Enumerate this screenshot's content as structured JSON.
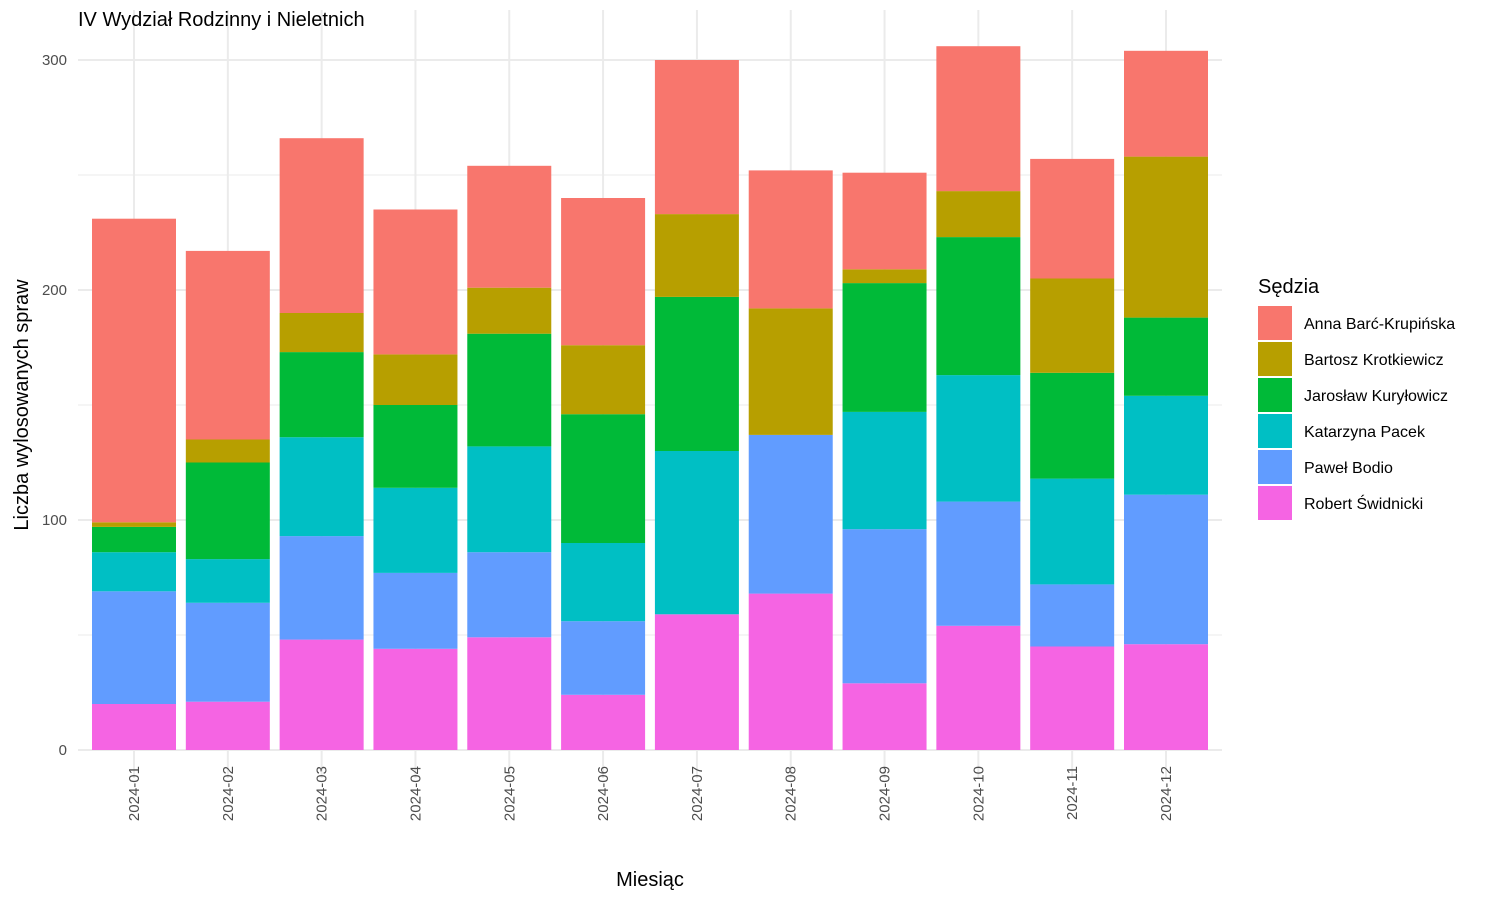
{
  "chart_data": {
    "type": "bar",
    "stacked": true,
    "title": "IV Wydział Rodzinny i Nieletnich",
    "xlabel": "Miesiąc",
    "ylabel": "Liczba wylosowanych spraw",
    "ylim": [
      0,
      310
    ],
    "yticks": [
      0,
      100,
      200,
      300
    ],
    "grid": true,
    "legend_title": "Sędzia",
    "legend_position": "right",
    "categories": [
      "2024-01",
      "2024-02",
      "2024-03",
      "2024-04",
      "2024-05",
      "2024-06",
      "2024-07",
      "2024-08",
      "2024-09",
      "2024-10",
      "2024-11",
      "2024-12"
    ],
    "series": [
      {
        "name": "Robert Świdnicki",
        "color": "#F564E3",
        "values": [
          20,
          21,
          48,
          44,
          49,
          24,
          59,
          68,
          29,
          54,
          45,
          46
        ]
      },
      {
        "name": "Paweł Bodio",
        "color": "#619CFF",
        "values": [
          49,
          43,
          45,
          33,
          37,
          32,
          0,
          69,
          67,
          54,
          27,
          65
        ]
      },
      {
        "name": "Katarzyna Pacek",
        "color": "#00BFC4",
        "values": [
          17,
          19,
          43,
          37,
          46,
          34,
          71,
          0,
          51,
          55,
          46,
          43
        ]
      },
      {
        "name": "Jarosław Kuryłowicz",
        "color": "#00BA38",
        "values": [
          11,
          42,
          37,
          36,
          49,
          56,
          67,
          0,
          56,
          60,
          46,
          34
        ]
      },
      {
        "name": "Bartosz Krotkiewicz",
        "color": "#B79F00",
        "values": [
          2,
          10,
          17,
          22,
          20,
          30,
          36,
          55,
          6,
          20,
          41,
          70
        ]
      },
      {
        "name": "Anna Barć-Krupińska",
        "color": "#F8766D",
        "values": [
          132,
          82,
          76,
          63,
          53,
          64,
          67,
          60,
          42,
          63,
          52,
          46
        ]
      }
    ],
    "legend_order": [
      "Anna Barć-Krupińska",
      "Bartosz Krotkiewicz",
      "Jarosław Kuryłowicz",
      "Katarzyna Pacek",
      "Paweł Bodio",
      "Robert Świdnicki"
    ]
  }
}
